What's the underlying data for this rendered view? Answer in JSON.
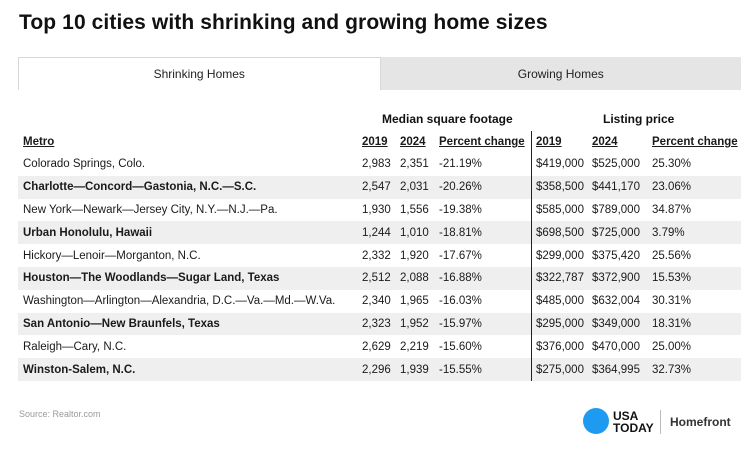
{
  "title": "Top 10 cities with shrinking and growing home sizes",
  "tabs": [
    {
      "label": "Shrinking Homes",
      "active": true
    },
    {
      "label": "Growing Homes",
      "active": false
    }
  ],
  "groups": {
    "median_sqft": "Median square footage",
    "listing_price": "Listing price"
  },
  "columns": {
    "metro": "Metro",
    "msf_2019": "2019",
    "msf_2024": "2024",
    "msf_pct": "Percent change",
    "lp_2019": "2019",
    "lp_2024": "2024",
    "lp_pct": "Percent change"
  },
  "rows": [
    {
      "metro": "Colorado Springs, Colo.",
      "msf_2019": "2,983",
      "msf_2024": "2,351",
      "msf_pct": "-21.19%",
      "lp_2019": "$419,000",
      "lp_2024": "$525,000",
      "lp_pct": "25.30%"
    },
    {
      "metro": "Charlotte—Concord—Gastonia, N.C.—S.C.",
      "msf_2019": "2,547",
      "msf_2024": "2,031",
      "msf_pct": "-20.26%",
      "lp_2019": "$358,500",
      "lp_2024": "$441,170",
      "lp_pct": "23.06%"
    },
    {
      "metro": "New York—Newark—Jersey City, N.Y.—N.J.—Pa.",
      "msf_2019": "1,930",
      "msf_2024": "1,556",
      "msf_pct": "-19.38%",
      "lp_2019": "$585,000",
      "lp_2024": "$789,000",
      "lp_pct": "34.87%"
    },
    {
      "metro": "Urban Honolulu, Hawaii",
      "msf_2019": "1,244",
      "msf_2024": "1,010",
      "msf_pct": "-18.81%",
      "lp_2019": "$698,500",
      "lp_2024": "$725,000",
      "lp_pct": "3.79%"
    },
    {
      "metro": "Hickory—Lenoir—Morganton, N.C.",
      "msf_2019": "2,332",
      "msf_2024": "1,920",
      "msf_pct": "-17.67%",
      "lp_2019": "$299,000",
      "lp_2024": "$375,420",
      "lp_pct": "25.56%"
    },
    {
      "metro": "Houston—The Woodlands—Sugar Land, Texas",
      "msf_2019": "2,512",
      "msf_2024": "2,088",
      "msf_pct": "-16.88%",
      "lp_2019": "$322,787",
      "lp_2024": "$372,900",
      "lp_pct": "15.53%"
    },
    {
      "metro": "Washington—Arlington—Alexandria, D.C.—Va.—Md.—W.Va.",
      "msf_2019": "2,340",
      "msf_2024": "1,965",
      "msf_pct": "-16.03%",
      "lp_2019": "$485,000",
      "lp_2024": "$632,004",
      "lp_pct": "30.31%"
    },
    {
      "metro": "San Antonio—New Braunfels, Texas",
      "msf_2019": "2,323",
      "msf_2024": "1,952",
      "msf_pct": "-15.97%",
      "lp_2019": "$295,000",
      "lp_2024": "$349,000",
      "lp_pct": "18.31%"
    },
    {
      "metro": "Raleigh—Cary, N.C.",
      "msf_2019": "2,629",
      "msf_2024": "2,219",
      "msf_pct": "-15.60%",
      "lp_2019": "$376,000",
      "lp_2024": "$470,000",
      "lp_pct": "25.00%"
    },
    {
      "metro": "Winston-Salem, N.C.",
      "msf_2019": "2,296",
      "msf_2024": "1,939",
      "msf_pct": "-15.55%",
      "lp_2019": "$275,000",
      "lp_2024": "$364,995",
      "lp_pct": "32.73%"
    }
  ],
  "source": "Source: Realtor.com",
  "logo": {
    "line1": "USA",
    "line2": "TODAY",
    "partner": "Homefront",
    "circle_color": "#1e9bf0"
  }
}
